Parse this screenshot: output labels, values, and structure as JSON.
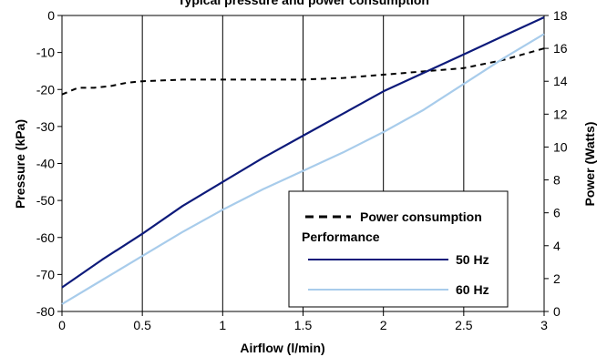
{
  "chart_data": {
    "type": "line",
    "title": "Typical pressure and power consumption",
    "xlabel": "Airflow (l/min)",
    "ylabel_left": "Pressure (kPa)",
    "ylabel_right": "Power (Watts)",
    "xlim": [
      0,
      3
    ],
    "ylim_left": [
      -80,
      0
    ],
    "ylim_right": [
      0,
      18
    ],
    "grid": "vertical",
    "legend_placement": "bottom-right",
    "x_ticks": [
      "0",
      "0.5",
      "1",
      "1.5",
      "2",
      "2.5",
      "3"
    ],
    "y_left_ticks": [
      "0",
      "-10",
      "-20",
      "-30",
      "-40",
      "-50",
      "-60",
      "-70",
      "-80"
    ],
    "y_right_ticks": [
      "0",
      "2",
      "4",
      "6",
      "8",
      "10",
      "12",
      "14",
      "16",
      "18"
    ],
    "legend": {
      "power_label": "Power consumption",
      "performance_label": "Performance",
      "hz50_label": "50 Hz",
      "hz60_label": "60 Hz"
    },
    "colors": {
      "hz50": "#0d1a7a",
      "hz60": "#a8cceb",
      "power": "#000000"
    },
    "series": [
      {
        "name": "Power consumption",
        "axis": "right",
        "style": "dashed",
        "x": [
          0,
          0.1,
          0.2,
          0.3,
          0.4,
          0.5,
          0.75,
          1,
          1.25,
          1.5,
          1.75,
          2,
          2.25,
          2.5,
          2.75,
          3
        ],
        "values": [
          13.2,
          13.6,
          13.6,
          13.7,
          13.9,
          14.0,
          14.1,
          14.1,
          14.1,
          14.1,
          14.2,
          14.4,
          14.6,
          14.8,
          15.3,
          16.0
        ]
      },
      {
        "name": "50 Hz",
        "axis": "left",
        "x": [
          0,
          0.25,
          0.5,
          0.75,
          1,
          1.25,
          1.5,
          1.75,
          2,
          2.25,
          2.5,
          2.75,
          3
        ],
        "values": [
          -73.5,
          -66,
          -59,
          -51.5,
          -45,
          -38.5,
          -32.5,
          -26.5,
          -20.5,
          -15.5,
          -10.5,
          -5.5,
          -0.5
        ]
      },
      {
        "name": "60 Hz",
        "axis": "left",
        "x": [
          0,
          0.25,
          0.5,
          0.75,
          1,
          1.25,
          1.5,
          1.75,
          2,
          2.25,
          2.5,
          2.75,
          3
        ],
        "values": [
          -78,
          -71.5,
          -65,
          -58.5,
          -52.5,
          -47,
          -42,
          -37,
          -31.5,
          -25.5,
          -18.5,
          -11.5,
          -5
        ]
      }
    ]
  }
}
